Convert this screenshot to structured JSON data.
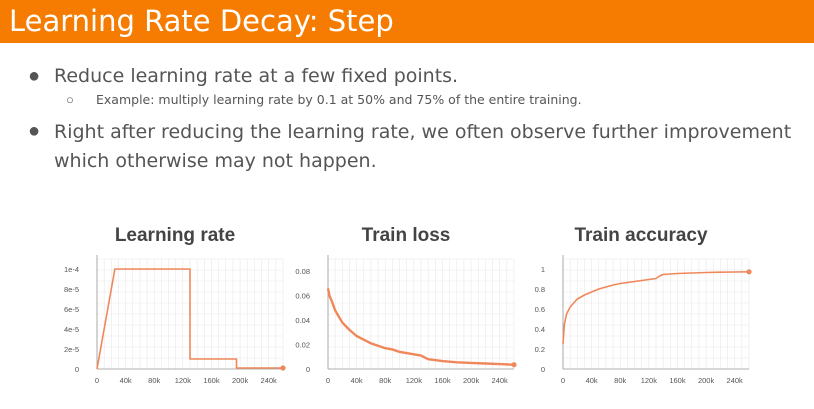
{
  "title": "Learning Rate Decay: Step",
  "bullets": {
    "b1": "Reduce learning rate at a few fixed points.",
    "b1_sub": "Example: multiply learning rate by 0.1 at 50% and 75% of the entire training.",
    "b2": "Right after reducing the learning rate, we often observe further improvement which otherwise may not happen.",
    "dot": "●",
    "subdot": "○"
  },
  "colors": {
    "accent": "#f57c00",
    "series": "#f0875a"
  },
  "chart_data": [
    {
      "type": "line",
      "title": "Learning rate",
      "xlim": [
        0,
        260000
      ],
      "ylim": [
        0,
        0.00011
      ],
      "xticks": [
        0,
        40000,
        80000,
        120000,
        160000,
        200000,
        240000
      ],
      "xtick_labels": [
        "0",
        "40k",
        "80k",
        "120k",
        "160k",
        "200k",
        "240k"
      ],
      "yticks": [
        0,
        2e-05,
        4e-05,
        6e-05,
        8e-05,
        0.0001
      ],
      "ytick_labels": [
        "0",
        "2e-5",
        "4e-5",
        "6e-5",
        "8e-5",
        "1e-4"
      ],
      "x": [
        0,
        25000,
        130000,
        130000,
        195000,
        195000,
        260000
      ],
      "y": [
        0,
        0.0001,
        0.0001,
        1e-05,
        1e-05,
        1e-06,
        1e-06
      ]
    },
    {
      "type": "line",
      "title": "Train loss",
      "xlim": [
        0,
        260000
      ],
      "ylim": [
        0,
        0.09
      ],
      "xticks": [
        0,
        40000,
        80000,
        120000,
        160000,
        200000,
        240000
      ],
      "xtick_labels": [
        "0",
        "40k",
        "80k",
        "120k",
        "160k",
        "200k",
        "240k"
      ],
      "yticks": [
        0,
        0.02,
        0.04,
        0.06,
        0.08
      ],
      "ytick_labels": [
        "0",
        "0.02",
        "0.04",
        "0.06",
        "0.08"
      ],
      "x": [
        0,
        2000,
        5000,
        10000,
        15000,
        20000,
        30000,
        40000,
        50000,
        60000,
        70000,
        80000,
        90000,
        100000,
        110000,
        120000,
        130000,
        140000,
        160000,
        180000,
        200000,
        220000,
        240000,
        260000
      ],
      "y": [
        0.066,
        0.06,
        0.056,
        0.048,
        0.043,
        0.038,
        0.032,
        0.027,
        0.024,
        0.021,
        0.019,
        0.017,
        0.016,
        0.014,
        0.013,
        0.012,
        0.011,
        0.008,
        0.0065,
        0.0055,
        0.005,
        0.0045,
        0.004,
        0.0035
      ]
    },
    {
      "type": "line",
      "title": "Train accuracy",
      "xlim": [
        0,
        260000
      ],
      "ylim": [
        0,
        1.1
      ],
      "xticks": [
        0,
        40000,
        80000,
        120000,
        160000,
        200000,
        240000
      ],
      "xtick_labels": [
        "0",
        "40k",
        "80k",
        "120k",
        "160k",
        "200k",
        "240k"
      ],
      "yticks": [
        0,
        0.2,
        0.4,
        0.6,
        0.8,
        1
      ],
      "ytick_labels": [
        "0",
        "0.2",
        "0.4",
        "0.6",
        "0.8",
        "1"
      ],
      "x": [
        0,
        2000,
        5000,
        10000,
        20000,
        30000,
        40000,
        50000,
        60000,
        70000,
        80000,
        90000,
        100000,
        110000,
        120000,
        130000,
        135000,
        140000,
        160000,
        180000,
        200000,
        220000,
        240000,
        260000
      ],
      "y": [
        0.25,
        0.45,
        0.55,
        0.62,
        0.7,
        0.74,
        0.77,
        0.8,
        0.82,
        0.84,
        0.855,
        0.865,
        0.875,
        0.885,
        0.895,
        0.905,
        0.93,
        0.945,
        0.955,
        0.96,
        0.965,
        0.968,
        0.97,
        0.972
      ]
    }
  ]
}
